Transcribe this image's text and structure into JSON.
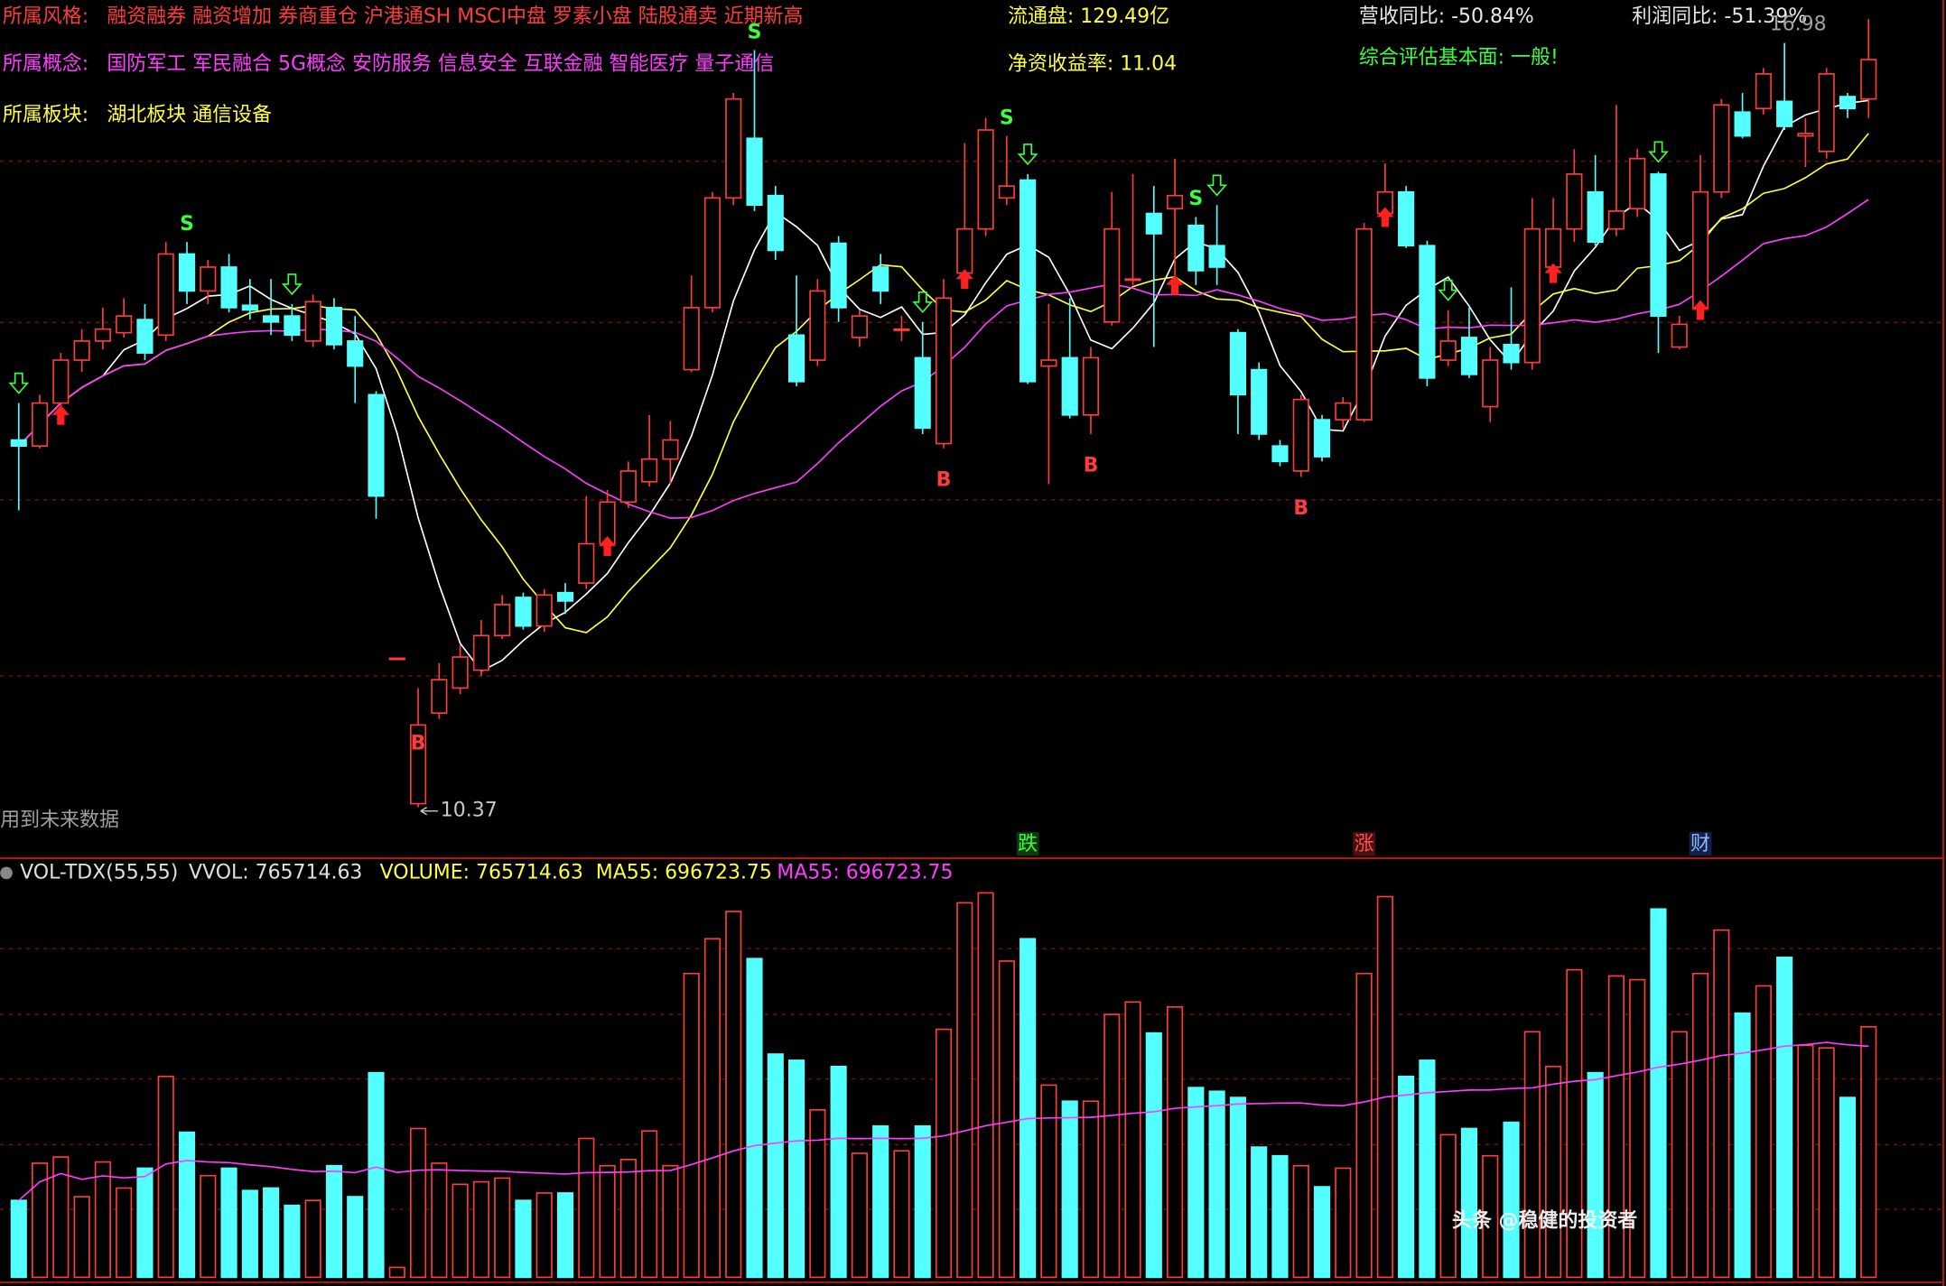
{
  "chart_data": {
    "type": "candlestick",
    "info": {
      "style_label": "所属风格:",
      "style_items": "融资融券 融资增加 券商重仓 沪港通SH MSCI中盘 罗素小盘 陆股通卖 近期新高",
      "concept_label": "所属概念:",
      "concept_items": "国防军工 军民融合 5G概念 安防服务 信息安全 互联金融 智能医疗 量子通信",
      "sector_label": "所属板块:",
      "sector_items": "湖北板块 通信设备",
      "float_shares": "流通盘: 129.49亿",
      "roe": "净资收益率: 11.04",
      "revenue_yoy": "营收同比: -50.84%",
      "profit_yoy": "利润同比: -51.39%",
      "assessment": "综合评估基本面: 一般!"
    },
    "high_label": "16.98",
    "low_label": "10.37",
    "future_note": "用到未来数据",
    "candles": [
      [
        13.45,
        13.76,
        12.86,
        13.4
      ],
      [
        13.4,
        13.83,
        13.38,
        13.76
      ],
      [
        13.76,
        14.18,
        13.66,
        14.12
      ],
      [
        14.12,
        14.38,
        14.02,
        14.28
      ],
      [
        14.28,
        14.56,
        14.21,
        14.38
      ],
      [
        14.35,
        14.64,
        14.31,
        14.49
      ],
      [
        14.46,
        14.59,
        14.12,
        14.18
      ],
      [
        14.33,
        15.11,
        14.28,
        15.01
      ],
      [
        15.01,
        15.11,
        14.59,
        14.7
      ],
      [
        14.7,
        14.96,
        14.59,
        14.9
      ],
      [
        14.9,
        15.01,
        14.52,
        14.56
      ],
      [
        14.58,
        14.8,
        14.46,
        14.54
      ],
      [
        14.49,
        14.8,
        14.33,
        14.44
      ],
      [
        14.49,
        14.59,
        14.28,
        14.33
      ],
      [
        14.28,
        14.67,
        14.23,
        14.61
      ],
      [
        14.56,
        14.64,
        14.21,
        14.25
      ],
      [
        14.28,
        14.49,
        13.76,
        14.07
      ],
      [
        13.83,
        13.86,
        12.79,
        12.98
      ],
      [
        11.62,
        11.62,
        11.62,
        11.62
      ],
      [
        10.4,
        11.37,
        10.37,
        11.06
      ],
      [
        11.16,
        11.58,
        11.11,
        11.44
      ],
      [
        11.37,
        11.73,
        11.32,
        11.63
      ],
      [
        11.52,
        11.94,
        11.47,
        11.81
      ],
      [
        11.81,
        12.15,
        11.78,
        12.07
      ],
      [
        12.13,
        12.17,
        11.86,
        11.89
      ],
      [
        11.89,
        12.2,
        11.84,
        12.15
      ],
      [
        12.17,
        12.25,
        11.99,
        12.1
      ],
      [
        12.25,
        12.98,
        12.2,
        12.58
      ],
      [
        12.58,
        13.03,
        12.56,
        12.93
      ],
      [
        12.93,
        13.27,
        12.88,
        13.19
      ],
      [
        13.1,
        13.66,
        13.06,
        13.29
      ],
      [
        13.29,
        13.61,
        13.08,
        13.45
      ],
      [
        14.04,
        14.83,
        14.02,
        14.56
      ],
      [
        14.56,
        15.53,
        14.52,
        15.48
      ],
      [
        15.48,
        16.36,
        15.42,
        16.31
      ],
      [
        15.98,
        16.72,
        15.37,
        15.42
      ],
      [
        15.5,
        15.58,
        14.96,
        15.04
      ],
      [
        14.33,
        14.83,
        13.9,
        13.94
      ],
      [
        14.12,
        14.8,
        14.07,
        14.7
      ],
      [
        15.1,
        15.16,
        14.44,
        14.56
      ],
      [
        14.31,
        14.54,
        14.23,
        14.49
      ],
      [
        14.9,
        15.01,
        14.59,
        14.7
      ],
      [
        14.38,
        14.49,
        14.28,
        14.38
      ],
      [
        14.14,
        14.44,
        13.5,
        13.55
      ],
      [
        13.42,
        14.8,
        13.38,
        14.64
      ],
      [
        14.85,
        15.94,
        14.8,
        15.22
      ],
      [
        15.22,
        16.15,
        15.16,
        16.05
      ],
      [
        15.48,
        16.0,
        15.42,
        15.58
      ],
      [
        15.63,
        15.68,
        13.92,
        13.94
      ],
      [
        14.07,
        14.59,
        13.08,
        14.12
      ],
      [
        14.14,
        14.64,
        13.63,
        13.66
      ],
      [
        13.66,
        14.23,
        13.5,
        14.14
      ],
      [
        14.44,
        15.53,
        14.41,
        15.22
      ],
      [
        14.8,
        15.68,
        14.75,
        14.8
      ],
      [
        15.35,
        15.58,
        14.23,
        15.18
      ],
      [
        15.39,
        15.81,
        14.75,
        15.5
      ],
      [
        15.25,
        15.32,
        14.75,
        14.87
      ],
      [
        15.08,
        15.42,
        14.75,
        14.9
      ],
      [
        14.35,
        14.38,
        13.5,
        13.83
      ],
      [
        14.04,
        14.1,
        13.45,
        13.5
      ],
      [
        13.4,
        13.45,
        13.23,
        13.27
      ],
      [
        13.19,
        13.83,
        13.14,
        13.79
      ],
      [
        13.62,
        13.66,
        13.27,
        13.31
      ],
      [
        13.62,
        13.81,
        13.55,
        13.76
      ],
      [
        13.62,
        15.27,
        13.6,
        15.22
      ],
      [
        15.35,
        15.77,
        15.32,
        15.53
      ],
      [
        15.53,
        15.58,
        15.06,
        15.08
      ],
      [
        15.08,
        15.12,
        13.9,
        13.97
      ],
      [
        14.12,
        14.54,
        14.07,
        14.28
      ],
      [
        14.31,
        14.56,
        13.97,
        14.0
      ],
      [
        13.73,
        14.23,
        13.6,
        14.12
      ],
      [
        14.25,
        14.73,
        14.04,
        14.1
      ],
      [
        14.1,
        15.48,
        14.04,
        15.22
      ],
      [
        14.9,
        15.48,
        14.85,
        15.22
      ],
      [
        15.22,
        15.89,
        15.11,
        15.68
      ],
      [
        15.53,
        15.84,
        15.08,
        15.11
      ],
      [
        15.22,
        16.26,
        15.16,
        15.37
      ],
      [
        15.39,
        15.89,
        15.32,
        15.81
      ],
      [
        15.68,
        15.7,
        14.18,
        14.49
      ],
      [
        14.23,
        14.49,
        14.21,
        14.42
      ],
      [
        14.56,
        15.84,
        14.54,
        15.53
      ],
      [
        15.53,
        16.31,
        15.48,
        16.26
      ],
      [
        16.2,
        16.36,
        15.98,
        16.0
      ],
      [
        16.23,
        16.57,
        16.18,
        16.52
      ],
      [
        16.29,
        16.78,
        16.05,
        16.08
      ],
      [
        16.0,
        16.15,
        15.74,
        16.02
      ],
      [
        15.87,
        16.57,
        15.81,
        16.52
      ],
      [
        16.33,
        16.36,
        16.15,
        16.23
      ],
      [
        16.31,
        16.98,
        16.15,
        16.64
      ]
    ],
    "volumes": [
      234980,
      348680,
      367630,
      246350,
      352470,
      272880,
      333520,
      613980,
      443430,
      310780,
      333520,
      265300,
      272880,
      219820,
      234980,
      341100,
      246350,
      625350,
      30320,
      454800,
      348680,
      284250,
      291830,
      303200,
      234980,
      257720,
      257720,
      424480,
      341100,
      360050,
      447220,
      341100,
      928550,
      1034670,
      1118050,
      974030,
      682200,
      663250,
      511650,
      644300,
      379000,
      462380,
      386580,
      462380,
      758000,
      1144580,
      1174900,
      966450,
      1034670,
      587450,
      538180,
      538180,
      803480,
      841380,
      746630,
      826220,
      579870,
      568500,
      549550,
      397950,
      371420,
      341100,
      276670,
      333520,
      928550,
      1163530,
      613980,
      663250,
      435850,
      454800,
      371420,
      473750,
      750420,
      644300,
      939920,
      625350,
      920970,
      909600,
      1125630,
      750420,
      928550,
      1061200,
      807270,
      890650,
      977820,
      708730,
      701150,
      549550,
      765714.63
    ],
    "signals": [
      {
        "label": "S",
        "index": 8
      },
      {
        "label": "S",
        "index": 35
      },
      {
        "label": "S",
        "index": 47
      },
      {
        "label": "S",
        "index": 56
      },
      {
        "label": "B",
        "index": 19
      },
      {
        "label": "B",
        "index": 44
      },
      {
        "label": "B",
        "index": 51
      },
      {
        "label": "B",
        "index": 61
      }
    ],
    "buy_arrows": [
      2,
      28,
      45,
      55,
      65,
      73,
      80
    ],
    "sell_arrows": [
      0,
      13,
      43,
      48,
      57,
      68,
      78
    ],
    "events": [
      {
        "label": "跌",
        "index": 48
      },
      {
        "label": "涨",
        "index": 64
      },
      {
        "label": "财",
        "index": 80
      }
    ],
    "volume_legend": {
      "indicator": "VOL-TDX(55,55)",
      "vvol": "VVOL: 765714.63",
      "volume": "VOLUME: 765714.63",
      "ma55_a": "MA55: 696723.75",
      "ma55_b": "MA55: 696723.75"
    },
    "up_color": "#ff3c3c",
    "down_color": "#54ffff",
    "watermark": "头条 @稳健的投资者"
  }
}
